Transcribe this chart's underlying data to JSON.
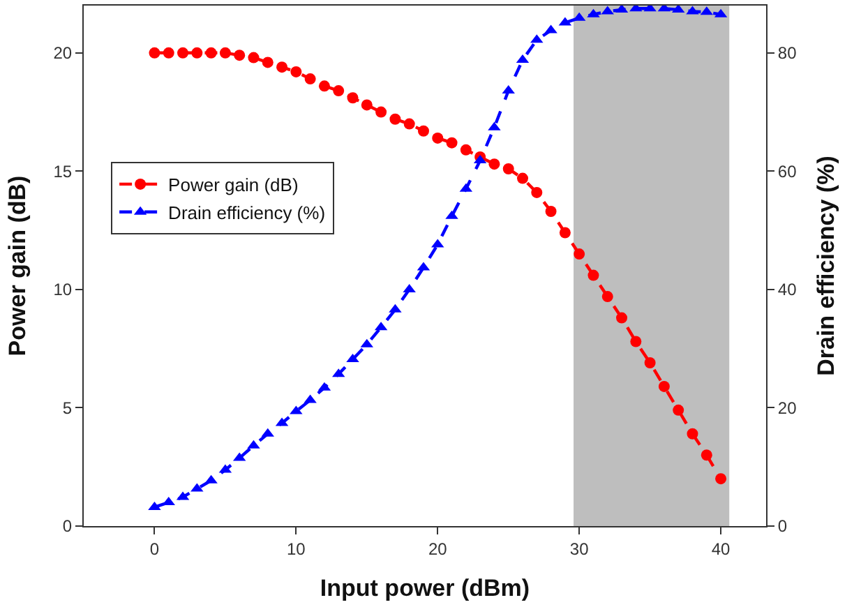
{
  "chart_data": {
    "type": "line",
    "xlabel": "Input power (dBm)",
    "ylabel": "Power gain (dB)",
    "y2label": "Drain efficiency (%)",
    "x": [
      0,
      1,
      2,
      3,
      4,
      5,
      6,
      7,
      8,
      9,
      10,
      11,
      12,
      13,
      14,
      15,
      16,
      17,
      18,
      19,
      20,
      21,
      22,
      23,
      24,
      25,
      26,
      27,
      28,
      29,
      30,
      31,
      32,
      33,
      34,
      35,
      36,
      37,
      38,
      39,
      40
    ],
    "series": [
      {
        "name": "Power gain (dB)",
        "color": "#ff0000",
        "marker": "circle",
        "values": [
          20.0,
          20.0,
          20.0,
          20.0,
          20.0,
          20.0,
          19.9,
          19.8,
          19.6,
          19.4,
          19.2,
          18.9,
          18.6,
          18.4,
          18.1,
          17.8,
          17.5,
          17.2,
          17.0,
          16.7,
          16.4,
          16.2,
          15.9,
          15.6,
          15.3,
          15.1,
          14.7,
          14.1,
          13.3,
          12.4,
          11.5,
          10.6,
          9.7,
          8.8,
          7.8,
          6.9,
          5.9,
          4.9,
          3.9,
          3.0,
          2.0
        ]
      },
      {
        "name": "Drain efficiency (%)",
        "color": "#0000ff",
        "marker": "triangle",
        "axis": "y2",
        "values": [
          3.2,
          4.0,
          4.9,
          6.3,
          7.7,
          9.5,
          11.5,
          13.6,
          15.6,
          17.4,
          19.4,
          21.3,
          23.4,
          25.7,
          28.2,
          30.7,
          33.6,
          36.6,
          40.0,
          43.7,
          47.6,
          52.4,
          57.0,
          61.8,
          67.4,
          73.6,
          78.8,
          82.2,
          83.8,
          85.1,
          85.9,
          86.5,
          87.0,
          87.3,
          87.5,
          87.5,
          87.5,
          87.3,
          87.0,
          86.9,
          86.5
        ]
      }
    ],
    "line_style": "dashed",
    "xlim": [
      -5,
      43.2
    ],
    "xticks": [
      0,
      10,
      20,
      30,
      40
    ],
    "ylim": [
      0,
      22
    ],
    "yticks": [
      0,
      5,
      10,
      15,
      20
    ],
    "y2lim": [
      0,
      88
    ],
    "y2ticks": [
      0,
      20,
      40,
      60,
      80
    ],
    "bands": [
      {
        "axis": "x",
        "from": 29.6,
        "to": 40.6,
        "color": "#bebebe"
      }
    ],
    "grid": false,
    "legend": "left"
  }
}
